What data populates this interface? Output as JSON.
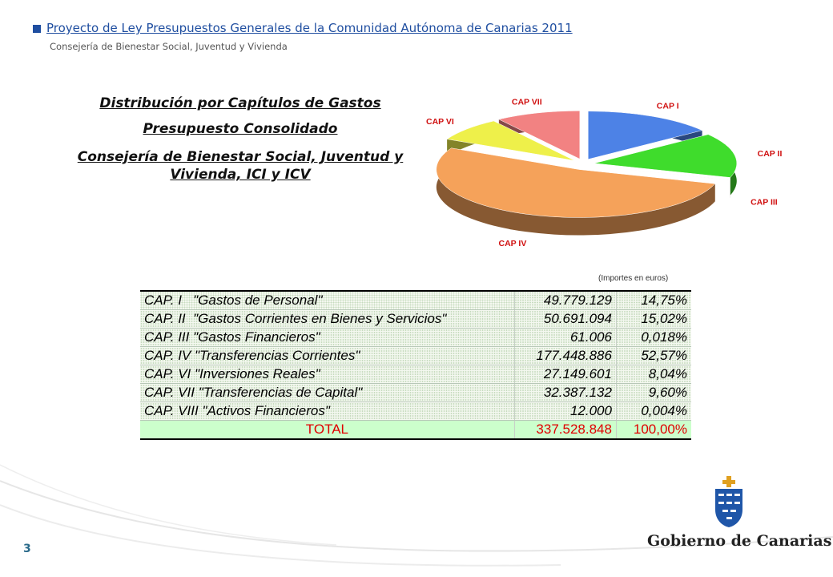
{
  "header": {
    "title": "Proyecto de Ley Presupuestos Generales de la Comunidad Autónoma de Canarias 2011",
    "subtitle": "Consejería de Bienestar Social, Juventud y Vivienda"
  },
  "chart_data": {
    "type": "pie",
    "title": "Distribución por Capítulos de Gastos",
    "subtitle": "Presupuesto Consolidado",
    "entity": "Consejería de Bienestar Social, Juventud y Vivienda, ICI y ICV",
    "categories": [
      "CAP I",
      "CAP II",
      "CAP III",
      "CAP IV",
      "CAP VI",
      "CAP VII"
    ],
    "values": [
      14.75,
      15.02,
      0.018,
      52.57,
      8.04,
      9.6
    ],
    "colors": [
      "#4d82e6",
      "#3fdc2c",
      "#8c1c14",
      "#f5a25a",
      "#eef04a",
      "#f28282"
    ]
  },
  "table": {
    "note": "(Importes en euros)",
    "rows": [
      [
        "CAP. I   \"Gastos de Personal\"",
        "49.779.129",
        "14,75%"
      ],
      [
        "CAP. II  \"Gastos Corrientes en Bienes y Servicios\"",
        "50.691.094",
        "15,02%"
      ],
      [
        "CAP. III \"Gastos Financieros\"",
        "61.006",
        "0,018%"
      ],
      [
        "CAP. IV \"Transferencias Corrientes\"",
        "177.448.886",
        "52,57%"
      ],
      [
        "CAP. VI \"Inversiones Reales\"",
        "27.149.601",
        "8,04%"
      ],
      [
        "CAP. VII \"Transferencias de Capital\"",
        "32.387.132",
        "9,60%"
      ],
      [
        "CAP. VIII \"Activos Financieros\"",
        "12.000",
        "0,004%"
      ]
    ],
    "total": [
      "TOTAL",
      "337.528.848",
      "100,00%"
    ]
  },
  "footer": {
    "page": "3",
    "brand": "Gobierno de Canarias"
  }
}
